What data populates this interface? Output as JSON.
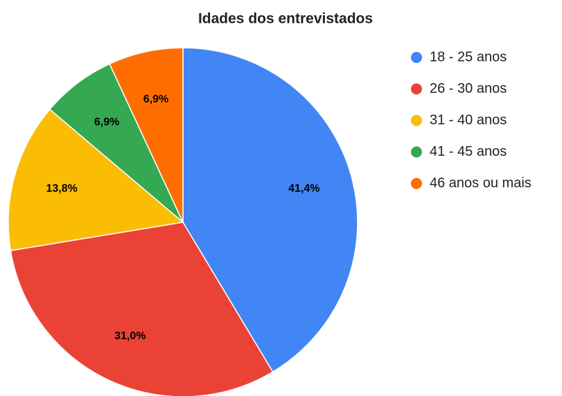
{
  "chart_data": {
    "type": "pie",
    "title": "Idades dos entrevistados",
    "categories": [
      "18 - 25 anos",
      "26 - 30 anos",
      "31 - 40 anos",
      "41 - 45 anos",
      "46 anos ou mais"
    ],
    "values": [
      41.4,
      31.0,
      13.8,
      6.9,
      6.9
    ],
    "value_labels": [
      "41,4%",
      "31,0%",
      "13,8%",
      "6,9%",
      "6,9%"
    ],
    "colors": [
      "#4285f4",
      "#ea4335",
      "#fbbc04",
      "#34a853",
      "#ff6d01"
    ],
    "legend": "right"
  }
}
